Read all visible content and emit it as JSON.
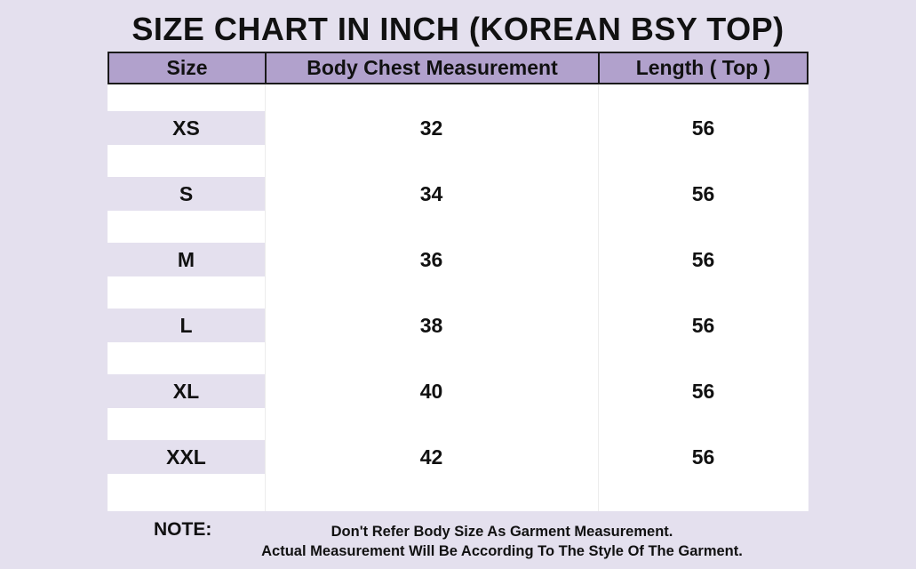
{
  "title": "SIZE CHART IN INCH (KOREAN BSY TOP)",
  "table": {
    "headers": [
      "Size",
      "Body Chest Measurement",
      "Length ( Top )"
    ],
    "rows": [
      {
        "size": "XS",
        "chest": "32",
        "length": "56"
      },
      {
        "size": "S",
        "chest": "34",
        "length": "56"
      },
      {
        "size": "M",
        "chest": "36",
        "length": "56"
      },
      {
        "size": "L",
        "chest": "38",
        "length": "56"
      },
      {
        "size": "XL",
        "chest": "40",
        "length": "56"
      },
      {
        "size": "XXL",
        "chest": "42",
        "length": "56"
      }
    ]
  },
  "note": {
    "label": "NOTE:",
    "line1": "Don't Refer Body Size As Garment Measurement.",
    "line2": "Actual Measurement Will Be According To The Style Of The Garment."
  },
  "colors": {
    "background": "#e4e0ee",
    "header": "#b1a1cc",
    "table_body": "#ffffff"
  }
}
